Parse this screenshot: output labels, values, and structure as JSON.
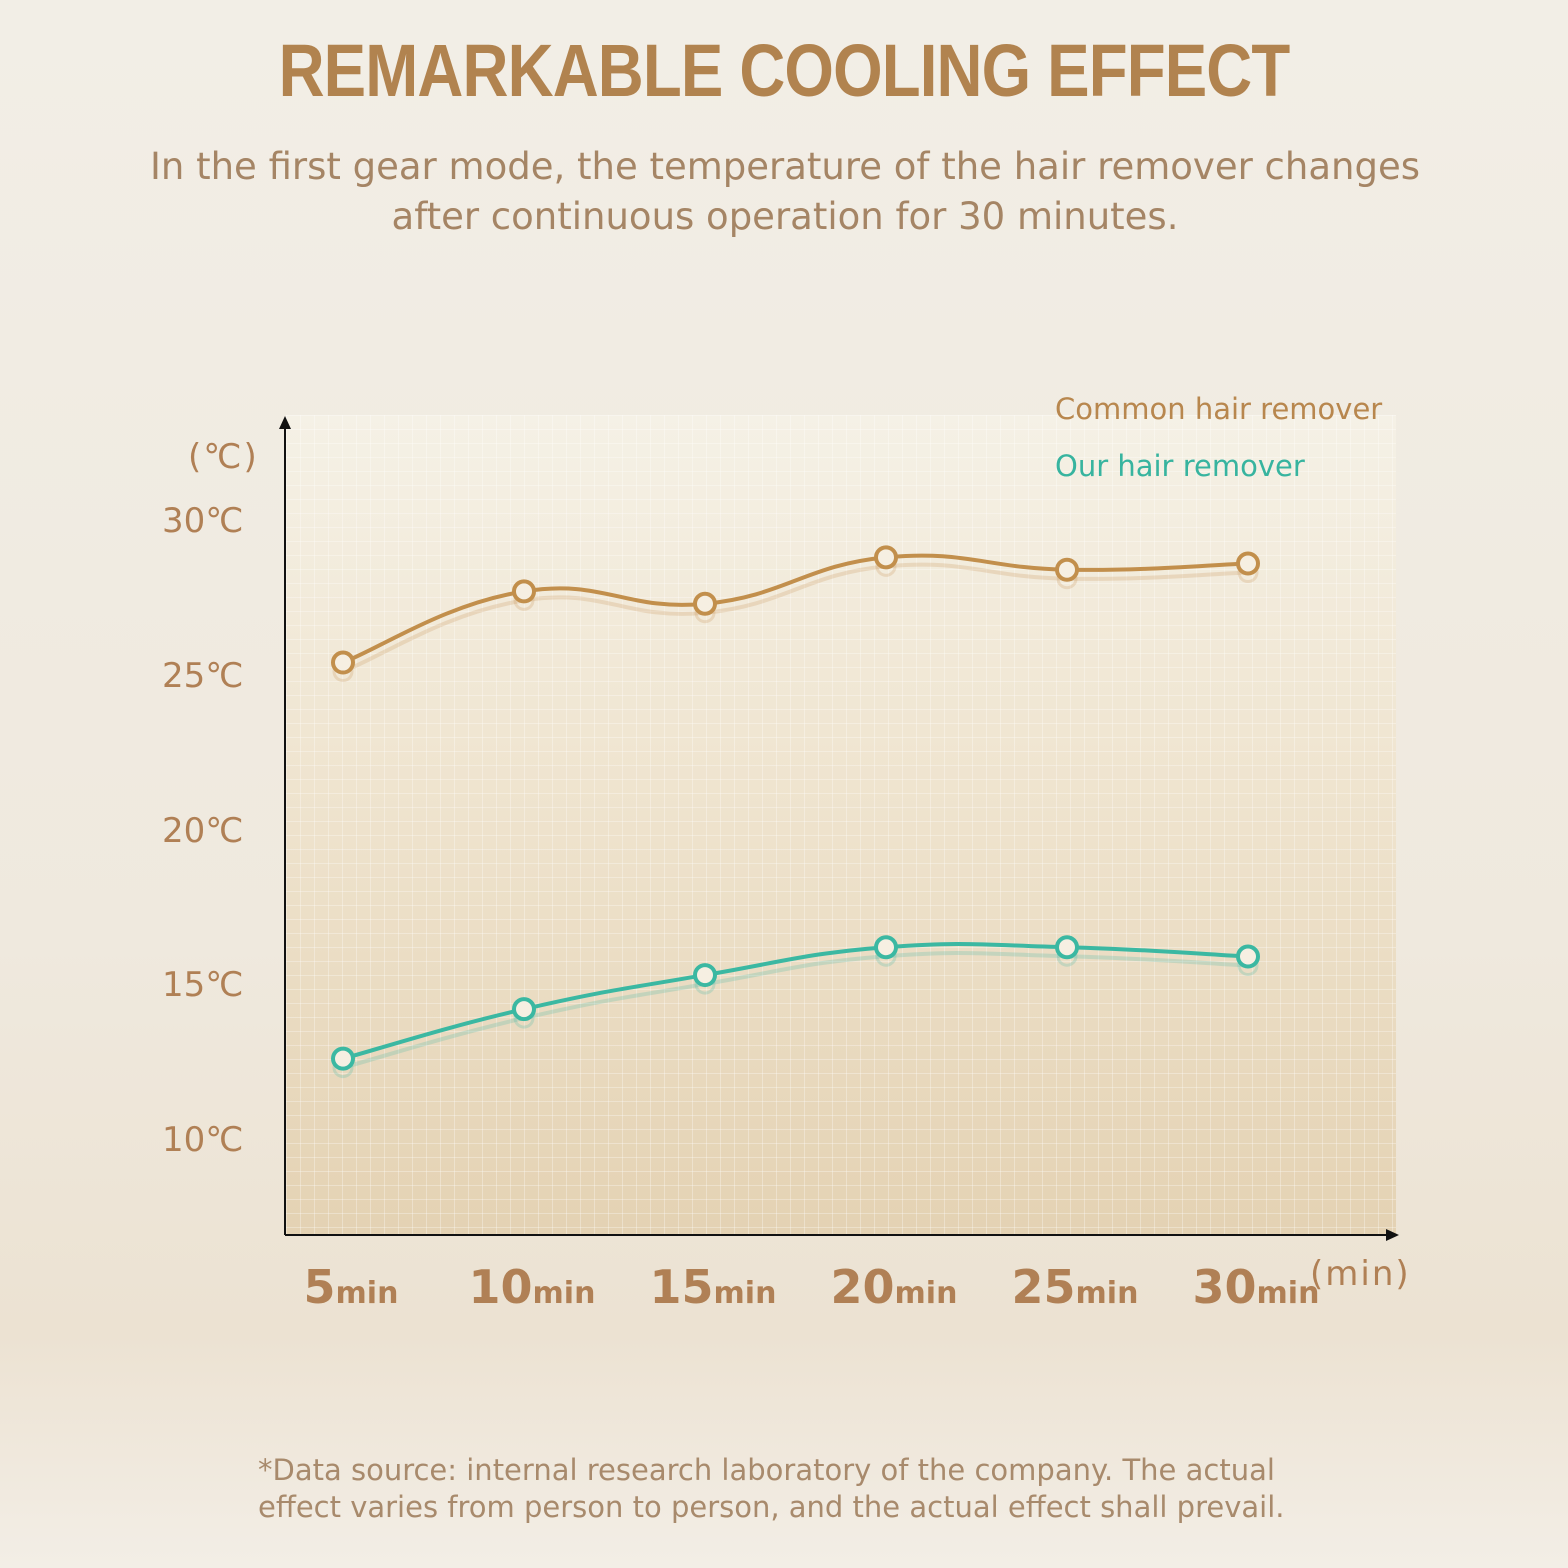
{
  "title": "REMARKABLE COOLING EFFECT",
  "subtitle": "In the first gear mode, the temperature of the hair remover changes after continuous operation for 30 minutes.",
  "footnote": "*Data source: internal research laboratory of the company. The actual effect varies from person to person, and the actual effect shall prevail.",
  "chart_data": {
    "type": "line",
    "y_unit_label": "(℃)",
    "x_unit_label": "(min)",
    "categories": [
      "5",
      "10",
      "15",
      "20",
      "25",
      "30"
    ],
    "category_suffix": "min",
    "yticks": [
      "10℃",
      "15℃",
      "20℃",
      "25℃",
      "30℃"
    ],
    "ytick_values": [
      10,
      15,
      20,
      25,
      30
    ],
    "ylim": [
      7,
      33.5
    ],
    "grid": true,
    "legend_position": "top-right",
    "series": [
      {
        "name": "Common hair remover",
        "color": "#c28f4c",
        "values": [
          25.5,
          27.8,
          27.4,
          28.9,
          28.5,
          28.7
        ]
      },
      {
        "name": "Our hair remover",
        "color": "#3bb8a2",
        "values": [
          12.7,
          14.3,
          15.4,
          16.3,
          16.3,
          16.0
        ]
      }
    ]
  }
}
